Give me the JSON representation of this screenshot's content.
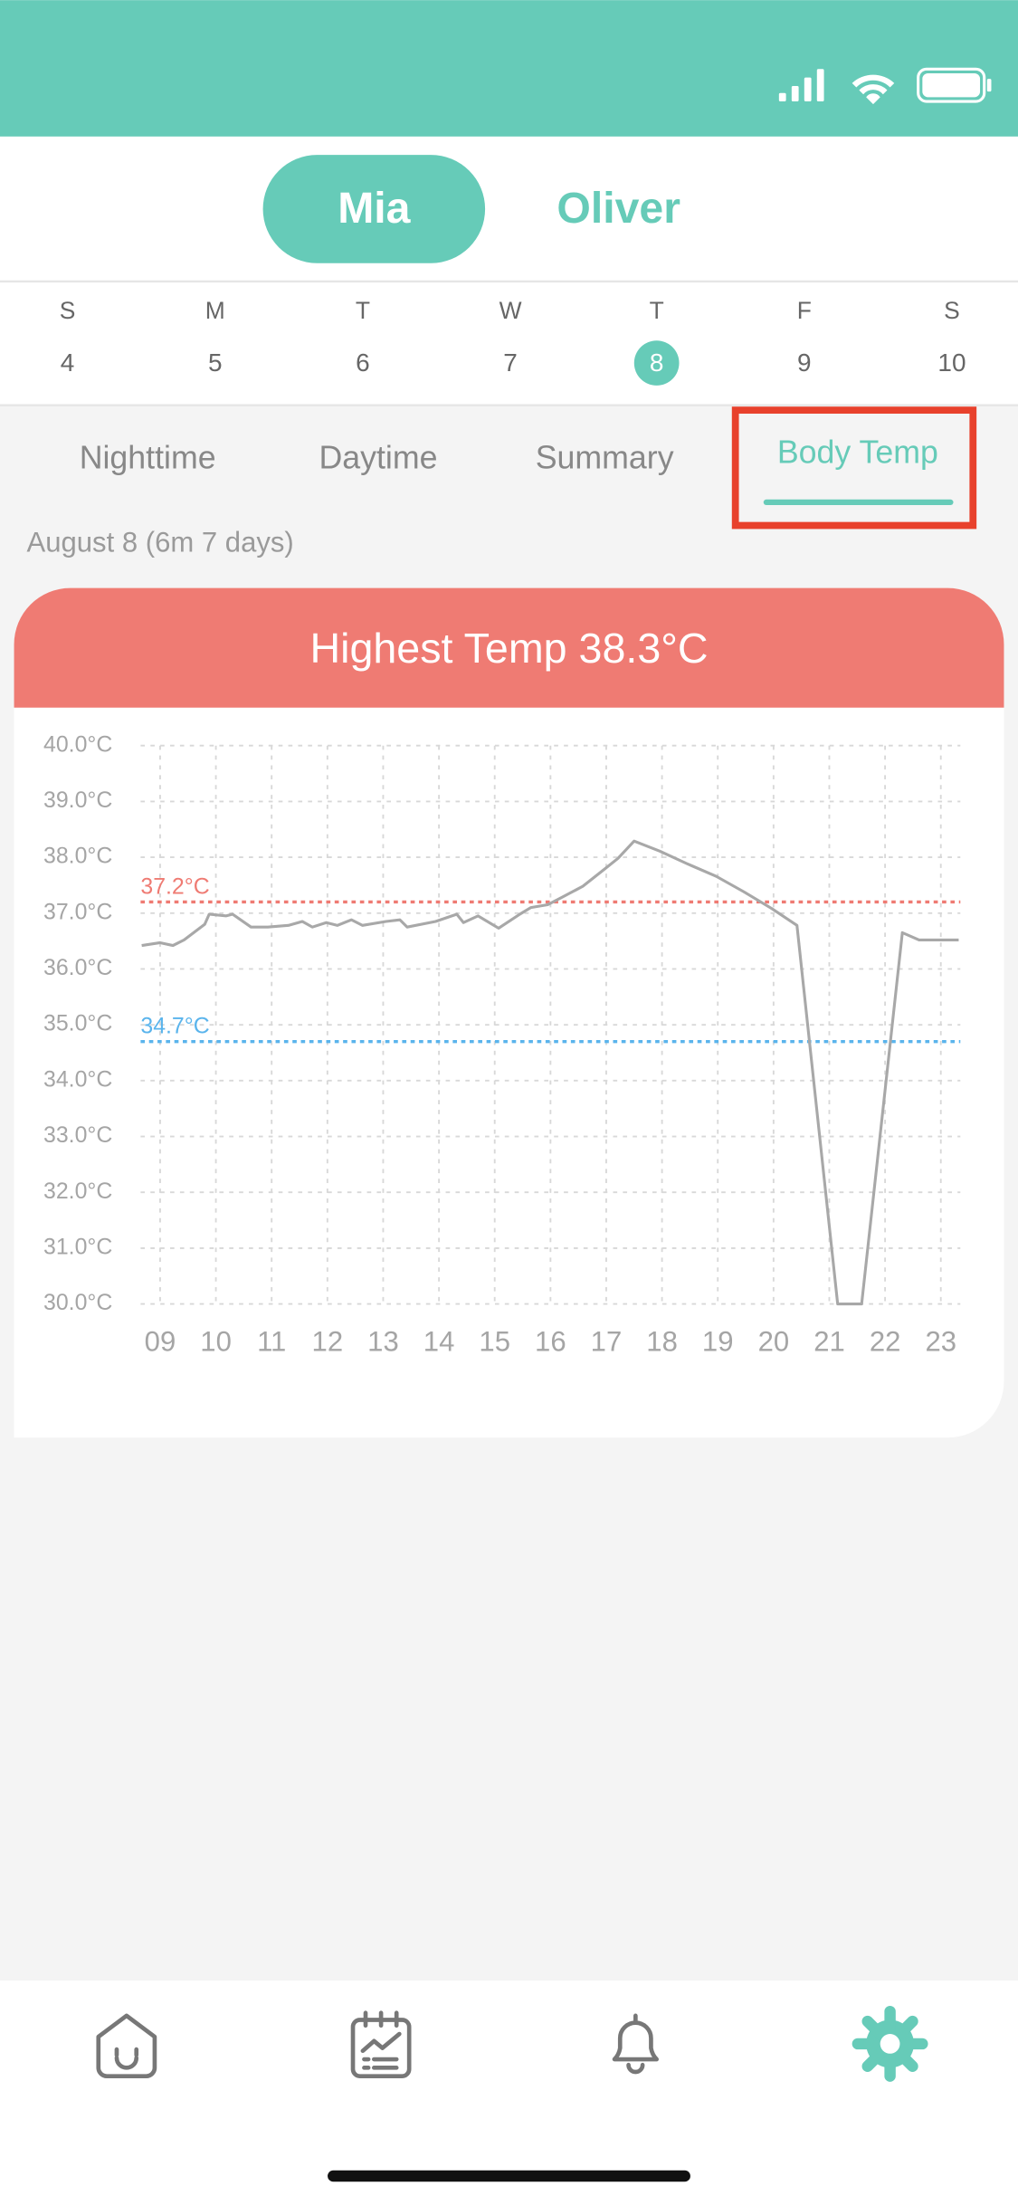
{
  "profiles": [
    "Mia",
    "Oliver"
  ],
  "week": {
    "letters": [
      "S",
      "M",
      "T",
      "W",
      "T",
      "F",
      "S"
    ],
    "dates": [
      4,
      5,
      6,
      7,
      8,
      9,
      10
    ]
  },
  "tabs": [
    "Nighttime",
    "Daytime",
    "Summary",
    "Body Temp"
  ],
  "date_label": "August 8 (6m 7 days)",
  "chart_data": {
    "type": "line",
    "title": "Highest Temp 38.3°C",
    "x": [
      8.67,
      9.0,
      9.23,
      9.43,
      9.8,
      9.88,
      10.18,
      10.3,
      10.63,
      10.93,
      11.3,
      11.55,
      11.73,
      11.98,
      12.18,
      12.43,
      12.63,
      13.05,
      13.3,
      13.43,
      13.94,
      14.32,
      14.44,
      14.7,
      15.07,
      15.45,
      15.65,
      15.95,
      16.2,
      16.58,
      16.96,
      17.21,
      17.5,
      17.96,
      18.46,
      18.97,
      19.47,
      19.97,
      20.42,
      21.15,
      21.58,
      22.31,
      22.61,
      23.32
    ],
    "series": [
      {
        "color": "#a8a8a8",
        "values": [
          36.42,
          36.47,
          36.42,
          36.52,
          36.8,
          36.98,
          36.95,
          36.98,
          36.75,
          36.75,
          36.78,
          36.85,
          36.75,
          36.83,
          36.78,
          36.88,
          36.78,
          36.85,
          36.88,
          36.75,
          36.85,
          36.98,
          36.83,
          36.95,
          36.73,
          36.98,
          37.1,
          37.15,
          37.28,
          37.48,
          37.78,
          37.98,
          38.29,
          38.11,
          37.88,
          37.66,
          37.38,
          37.08,
          36.78,
          30.0,
          30.0,
          36.65,
          36.52,
          36.52
        ]
      }
    ],
    "xlim": [
      8.65,
      23.35
    ],
    "xticks": [
      {
        "value": 9,
        "label": "09"
      },
      10,
      11,
      12,
      13,
      14,
      15,
      16,
      17,
      18,
      19,
      20,
      21,
      22,
      23
    ],
    "ylim": [
      30,
      40
    ],
    "yticks": [
      {
        "value": 30,
        "label": "30.0°C"
      },
      {
        "value": 31,
        "label": "31.0°C"
      },
      {
        "value": 32,
        "label": "32.0°C"
      },
      {
        "value": 33,
        "label": "33.0°C"
      },
      {
        "value": 34,
        "label": "34.0°C"
      },
      {
        "value": 35,
        "label": "35.0°C"
      },
      {
        "value": 36,
        "label": "36.0°C"
      },
      {
        "value": 37,
        "label": "37.0°C"
      },
      {
        "value": 38,
        "label": "38.0°C"
      },
      {
        "value": 39,
        "label": "39.0°C"
      },
      {
        "value": 40,
        "label": "40.0°C"
      }
    ],
    "grid": true,
    "reference_lines": [
      {
        "value": 37.2,
        "label": "37.2°C",
        "color": "#ef7b73"
      },
      {
        "value": 34.7,
        "label": "34.7°C",
        "color": "#5ab4ec"
      }
    ]
  }
}
